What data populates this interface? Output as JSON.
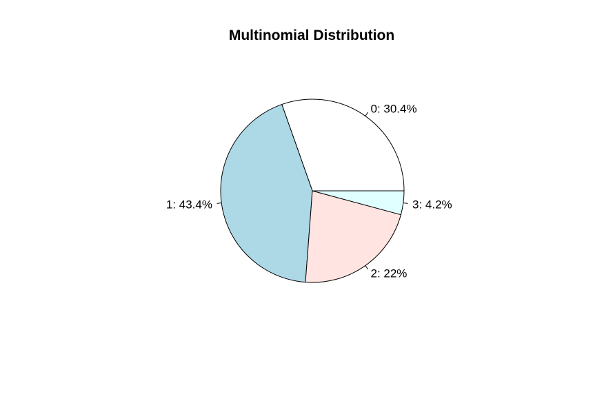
{
  "chart_data": {
    "type": "pie",
    "title": "Multinomial Distribution",
    "direction": "counterclockwise",
    "start_angle_deg": 0,
    "slices": [
      {
        "category": "0",
        "value": 30.4,
        "label": "0: 30.4%",
        "color": "#ffffff"
      },
      {
        "category": "1",
        "value": 43.4,
        "label": "1: 43.4%",
        "color": "#add8e6"
      },
      {
        "category": "2",
        "value": 22.0,
        "label": "2: 22%",
        "color": "#ffe4e1"
      },
      {
        "category": "3",
        "value": 4.2,
        "label": "3: 4.2%",
        "color": "#e0ffff"
      }
    ]
  }
}
